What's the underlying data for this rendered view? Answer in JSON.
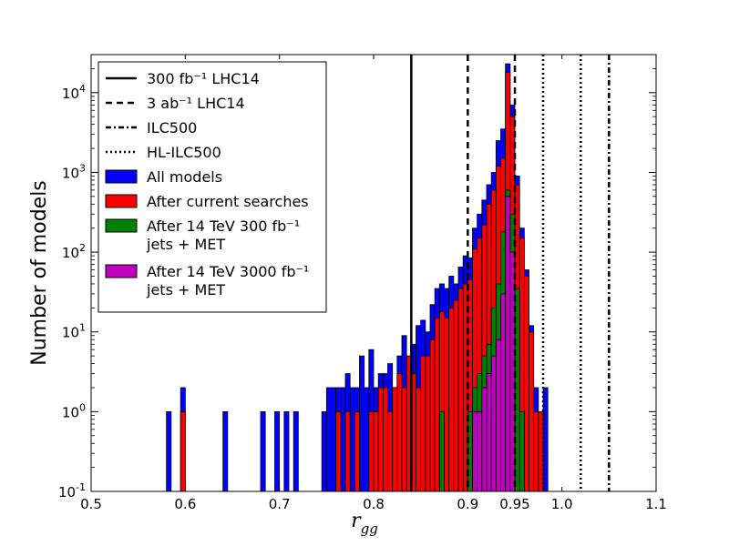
{
  "chart_data": {
    "type": "bar",
    "subtype": "stacked-step-histogram",
    "title": "",
    "xlabel": "r",
    "xlabel_sub": "gg",
    "ylabel": "Number of models",
    "xlim": [
      0.5,
      1.1
    ],
    "ylim": [
      0.1,
      30000
    ],
    "yscale": "log",
    "grid": false,
    "legend_position": "top-left",
    "x_ticks": [
      {
        "value": 0.5,
        "label": "0.5"
      },
      {
        "value": 0.6,
        "label": "0.6"
      },
      {
        "value": 0.7,
        "label": "0.7"
      },
      {
        "value": 0.8,
        "label": "0.8"
      },
      {
        "value": 0.9,
        "label": "0.9"
      },
      {
        "value": 0.95,
        "label": "0.95"
      },
      {
        "value": 1.0,
        "label": "1.0"
      },
      {
        "value": 1.1,
        "label": "1.1"
      }
    ],
    "y_ticks": [
      {
        "value": 0.1,
        "base": "10",
        "exp": "-1"
      },
      {
        "value": 1,
        "base": "10",
        "exp": "0"
      },
      {
        "value": 10,
        "base": "10",
        "exp": "1"
      },
      {
        "value": 100,
        "base": "10",
        "exp": "2"
      },
      {
        "value": 1000,
        "base": "10",
        "exp": "3"
      },
      {
        "value": 10000,
        "base": "10",
        "exp": "4"
      }
    ],
    "bin_width": 0.005,
    "series": [
      {
        "name": "All models",
        "color": "#0000ff",
        "bins": [
          [
            0.58,
            1
          ],
          [
            0.595,
            2
          ],
          [
            0.64,
            1
          ],
          [
            0.68,
            1
          ],
          [
            0.695,
            1
          ],
          [
            0.705,
            1
          ],
          [
            0.715,
            1
          ],
          [
            0.745,
            1
          ],
          [
            0.75,
            2
          ],
          [
            0.755,
            2
          ],
          [
            0.76,
            2
          ],
          [
            0.765,
            2
          ],
          [
            0.77,
            3
          ],
          [
            0.775,
            2
          ],
          [
            0.78,
            2
          ],
          [
            0.785,
            5
          ],
          [
            0.79,
            2
          ],
          [
            0.795,
            6
          ],
          [
            0.8,
            2
          ],
          [
            0.805,
            3
          ],
          [
            0.81,
            3
          ],
          [
            0.815,
            4
          ],
          [
            0.82,
            2
          ],
          [
            0.825,
            5
          ],
          [
            0.83,
            9
          ],
          [
            0.835,
            4
          ],
          [
            0.84,
            7
          ],
          [
            0.845,
            12
          ],
          [
            0.85,
            14
          ],
          [
            0.855,
            10
          ],
          [
            0.86,
            22
          ],
          [
            0.865,
            35
          ],
          [
            0.87,
            40
          ],
          [
            0.875,
            35
          ],
          [
            0.88,
            50
          ],
          [
            0.885,
            40
          ],
          [
            0.89,
            65
          ],
          [
            0.895,
            90
          ],
          [
            0.9,
            85
          ],
          [
            0.905,
            200
          ],
          [
            0.91,
            300
          ],
          [
            0.915,
            450
          ],
          [
            0.92,
            700
          ],
          [
            0.925,
            1000
          ],
          [
            0.93,
            2500
          ],
          [
            0.935,
            3500
          ],
          [
            0.94,
            23000
          ],
          [
            0.945,
            7000
          ],
          [
            0.95,
            900
          ],
          [
            0.955,
            200
          ],
          [
            0.96,
            60
          ],
          [
            0.965,
            12
          ],
          [
            0.97,
            2
          ],
          [
            0.975,
            1
          ],
          [
            0.98,
            2
          ]
        ]
      },
      {
        "name": "After current searches",
        "color": "#ff0000",
        "bins": [
          [
            0.595,
            1
          ],
          [
            0.76,
            1
          ],
          [
            0.77,
            1
          ],
          [
            0.78,
            1
          ],
          [
            0.795,
            1
          ],
          [
            0.8,
            1
          ],
          [
            0.805,
            2
          ],
          [
            0.81,
            2
          ],
          [
            0.815,
            1
          ],
          [
            0.82,
            2
          ],
          [
            0.825,
            3
          ],
          [
            0.83,
            2
          ],
          [
            0.835,
            5
          ],
          [
            0.84,
            3
          ],
          [
            0.845,
            2
          ],
          [
            0.85,
            5
          ],
          [
            0.855,
            5
          ],
          [
            0.86,
            8
          ],
          [
            0.865,
            15
          ],
          [
            0.87,
            18
          ],
          [
            0.875,
            15
          ],
          [
            0.88,
            20
          ],
          [
            0.885,
            25
          ],
          [
            0.89,
            35
          ],
          [
            0.895,
            40
          ],
          [
            0.9,
            45
          ],
          [
            0.905,
            110
          ],
          [
            0.91,
            150
          ],
          [
            0.915,
            220
          ],
          [
            0.92,
            400
          ],
          [
            0.925,
            600
          ],
          [
            0.93,
            1200
          ],
          [
            0.935,
            1500
          ],
          [
            0.94,
            18000
          ],
          [
            0.945,
            5000
          ],
          [
            0.95,
            700
          ],
          [
            0.955,
            150
          ],
          [
            0.96,
            50
          ],
          [
            0.965,
            10
          ],
          [
            0.97,
            1
          ],
          [
            0.975,
            1
          ]
        ]
      },
      {
        "name": "After 14 TeV 300 fb⁻¹ jets + MET",
        "color": "#008000",
        "bins": [
          [
            0.87,
            1
          ],
          [
            0.9,
            1
          ],
          [
            0.905,
            2
          ],
          [
            0.91,
            3
          ],
          [
            0.915,
            5
          ],
          [
            0.92,
            7
          ],
          [
            0.925,
            20
          ],
          [
            0.93,
            40
          ],
          [
            0.935,
            180
          ],
          [
            0.94,
            600
          ],
          [
            0.945,
            300
          ],
          [
            0.95,
            35
          ],
          [
            0.955,
            1
          ]
        ]
      },
      {
        "name": "After 14 TeV 3000 fb⁻¹ jets + MET",
        "color": "#bf00bf",
        "bins": [
          [
            0.905,
            1
          ],
          [
            0.91,
            1
          ],
          [
            0.915,
            2
          ],
          [
            0.92,
            3
          ],
          [
            0.925,
            5
          ],
          [
            0.93,
            8
          ],
          [
            0.935,
            30
          ],
          [
            0.94,
            500
          ],
          [
            0.945,
            100
          ]
        ]
      }
    ],
    "vertical_lines": [
      {
        "name": "300 fb⁻¹ LHC14",
        "x": 0.84,
        "style": "solid"
      },
      {
        "name": "3 ab⁻¹ LHC14",
        "x": 0.9,
        "style": "dashed"
      },
      {
        "name": "3 ab⁻¹ LHC14",
        "x": 0.95,
        "style": "dashed"
      },
      {
        "name": "ILC500",
        "x": 1.05,
        "style": "dashdot"
      },
      {
        "name": "HL-ILC500",
        "x": 0.98,
        "style": "dotted"
      },
      {
        "name": "HL-ILC500",
        "x": 1.02,
        "style": "dotted"
      }
    ],
    "legend": [
      {
        "kind": "line",
        "style": "solid",
        "text": "300 fb⁻¹ LHC14"
      },
      {
        "kind": "line",
        "style": "dashed",
        "text": "3 ab⁻¹ LHC14"
      },
      {
        "kind": "line",
        "style": "dashdot",
        "text": "ILC500"
      },
      {
        "kind": "line",
        "style": "dotted",
        "text": "HL-ILC500"
      },
      {
        "kind": "patch",
        "color": "#0000ff",
        "text": "All models"
      },
      {
        "kind": "patch",
        "color": "#ff0000",
        "text": "After current searches"
      },
      {
        "kind": "patch",
        "color": "#008000",
        "text": "After 14 TeV 300 fb⁻¹",
        "text2": "jets + MET"
      },
      {
        "kind": "patch",
        "color": "#bf00bf",
        "text": "After 14 TeV 3000 fb⁻¹",
        "text2": "jets + MET"
      }
    ]
  }
}
